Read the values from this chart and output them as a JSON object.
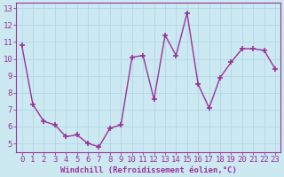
{
  "x": [
    0,
    1,
    2,
    3,
    4,
    5,
    6,
    7,
    8,
    9,
    10,
    11,
    12,
    13,
    14,
    15,
    16,
    17,
    18,
    19,
    20,
    21,
    22,
    23
  ],
  "y": [
    10.8,
    7.3,
    6.3,
    6.1,
    5.4,
    5.5,
    5.0,
    4.8,
    5.9,
    6.1,
    10.1,
    10.2,
    7.6,
    11.4,
    10.2,
    12.7,
    8.5,
    7.1,
    8.9,
    9.8,
    10.6,
    10.6,
    10.5,
    9.4
  ],
  "line_color": "#993399",
  "marker": "+",
  "marker_size": 4,
  "linewidth": 1.0,
  "xlabel": "Windchill (Refroidissement éolien,°C)",
  "ylabel": "",
  "xlim": [
    -0.5,
    23.5
  ],
  "ylim": [
    4.5,
    13.3
  ],
  "yticks": [
    5,
    6,
    7,
    8,
    9,
    10,
    11,
    12,
    13
  ],
  "xticks": [
    0,
    1,
    2,
    3,
    4,
    5,
    6,
    7,
    8,
    9,
    10,
    11,
    12,
    13,
    14,
    15,
    16,
    17,
    18,
    19,
    20,
    21,
    22,
    23
  ],
  "bg_color": "#cce8f0",
  "grid_color": "#b0d8e8",
  "axis_color": "#993399",
  "tick_color": "#993399",
  "xlabel_color": "#993399",
  "xlabel_fontsize": 6.5,
  "tick_fontsize": 6.5
}
